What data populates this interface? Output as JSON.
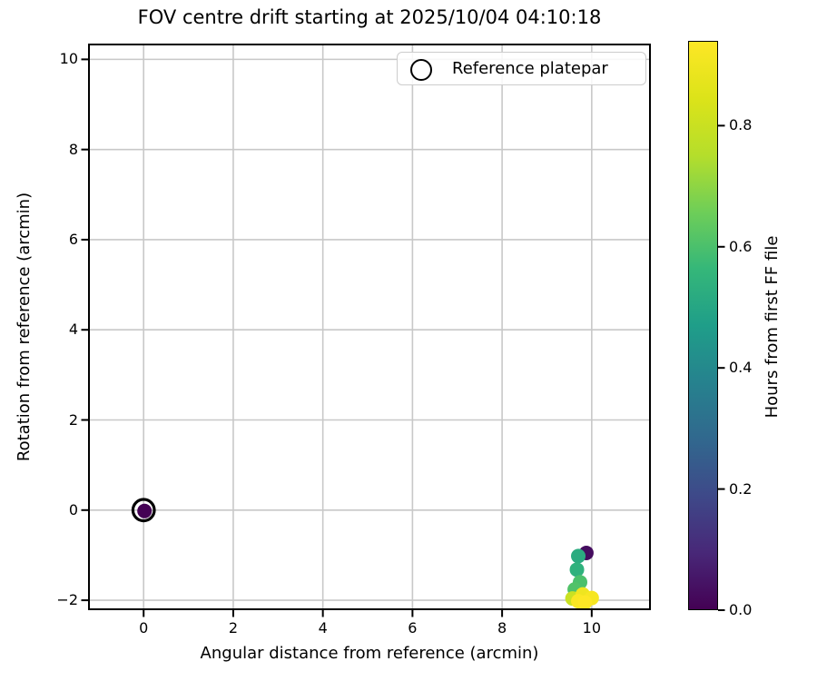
{
  "figure": {
    "title": "FOV centre drift starting at 2025/10/04 04:10:18",
    "xlabel": "Angular distance from reference (arcmin)",
    "ylabel": "Rotation from reference (arcmin)",
    "legend": {
      "label": "Reference platepar"
    },
    "colorbar": {
      "label": "Hours from first FF file",
      "tick_labels": [
        "0.0",
        "0.2",
        "0.4",
        "0.6",
        "0.8"
      ],
      "tick_values": [
        0.0,
        0.2,
        0.4,
        0.6,
        0.8
      ],
      "vmin": 0.0,
      "vmax": 0.94
    }
  },
  "chart_data": {
    "type": "scatter",
    "title": "FOV centre drift starting at 2025/10/04 04:10:18",
    "xlabel": "Angular distance from reference (arcmin)",
    "ylabel": "Rotation from reference (arcmin)",
    "xlim": [
      -1.22,
      11.3
    ],
    "ylim": [
      -2.2,
      10.33
    ],
    "xticks": {
      "values": [
        0,
        2,
        4,
        6,
        8,
        10
      ],
      "labels": [
        "0",
        "2",
        "4",
        "6",
        "8",
        "10"
      ]
    },
    "yticks": {
      "values": [
        -2,
        0,
        2,
        4,
        6,
        8,
        10
      ],
      "labels": [
        "−2",
        "0",
        "2",
        "4",
        "6",
        "8",
        "10"
      ]
    },
    "grid": true,
    "legend_position": "upper center-right",
    "colormap": "viridis",
    "color_axis_label": "Hours from first FF file",
    "color_range": [
      0.0,
      0.94
    ],
    "reference_marker": {
      "x": 0,
      "y": 0,
      "label": "Reference platepar",
      "style": "open-circle"
    },
    "points": [
      {
        "x": 0.02,
        "y": -0.02,
        "hours": 0.0
      },
      {
        "x": 9.88,
        "y": -0.95,
        "hours": 0.03
      },
      {
        "x": 9.7,
        "y": -1.02,
        "hours": 0.52
      },
      {
        "x": 9.67,
        "y": -1.32,
        "hours": 0.54
      },
      {
        "x": 9.74,
        "y": -1.6,
        "hours": 0.6
      },
      {
        "x": 9.62,
        "y": -1.76,
        "hours": 0.61
      },
      {
        "x": 9.57,
        "y": -1.96,
        "hours": 0.8
      },
      {
        "x": 9.8,
        "y": -1.87,
        "hours": 0.9
      },
      {
        "x": 10.0,
        "y": -1.95,
        "hours": 0.92
      },
      {
        "x": 9.7,
        "y": -2.02,
        "hours": 0.93
      },
      {
        "x": 9.85,
        "y": -2.05,
        "hours": 0.94
      }
    ]
  },
  "colors": {
    "viridis_stops": [
      "#440154",
      "#482878",
      "#3e4989",
      "#31688e",
      "#26828e",
      "#1f9e89",
      "#35b779",
      "#6ece58",
      "#b5de2b",
      "#dce319",
      "#fde725"
    ],
    "grid": "#c8c8c8",
    "spine": "#000000",
    "background": "#ffffff",
    "legend_border": "#cccccc"
  }
}
